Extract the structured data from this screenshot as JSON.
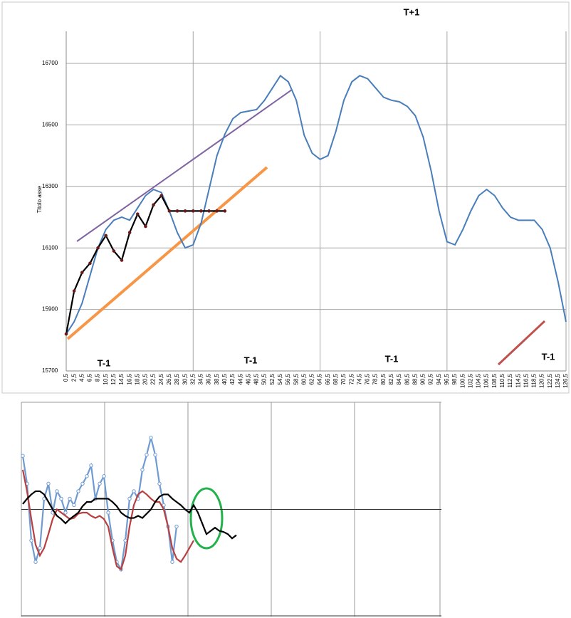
{
  "chart_data": [
    {
      "type": "line",
      "title": "T+1",
      "y_label": "Titolo asse",
      "annotations": [
        "T-1",
        "T-1",
        "T-1",
        "T-1"
      ],
      "categories": [
        "0,5",
        "2,5",
        "4,5",
        "6,5",
        "8,5",
        "10,5",
        "12,5",
        "14,5",
        "16,5",
        "18,5",
        "20,5",
        "22,5",
        "24,5",
        "26,5",
        "28,5",
        "30,5",
        "32,5",
        "34,5",
        "36,5",
        "38,5",
        "40,5",
        "42,5",
        "44,5",
        "46,5",
        "48,5",
        "50,5",
        "52,5",
        "54,5",
        "56,5",
        "58,5",
        "60,5",
        "62,5",
        "64,5",
        "66,5",
        "68,5",
        "70,5",
        "72,5",
        "74,5",
        "76,5",
        "78,5",
        "80,5",
        "82,5",
        "84,5",
        "86,5",
        "88,5",
        "90,5",
        "92,5",
        "94,5",
        "96,5",
        "98,5",
        "100,5",
        "102,5",
        "104,5",
        "106,5",
        "108,5",
        "110,5",
        "112,5",
        "114,5",
        "116,5",
        "118,5",
        "120,5",
        "122,5",
        "124,5",
        "126,5"
      ],
      "series": [
        {
          "color": "#4a7ebb",
          "values": [
            15820,
            15860,
            15920,
            16010,
            16100,
            16160,
            16190,
            16200,
            16190,
            16230,
            16270,
            16290,
            16280,
            16220,
            16150,
            16100,
            16110,
            16180,
            16290,
            16400,
            16470,
            16520,
            16540,
            16545,
            16550,
            16580,
            16620,
            16660,
            16640,
            16580,
            16466,
            16408,
            16388,
            16400,
            16480,
            16580,
            16640,
            16660,
            16650,
            16620,
            16590,
            16580,
            16575,
            16560,
            16530,
            16460,
            16350,
            16220,
            16120,
            16110,
            16160,
            16220,
            16270,
            16290,
            16270,
            16230,
            16200,
            16190,
            16190,
            16190,
            16160,
            16100,
            15990,
            15860
          ]
        },
        {
          "color": "#000000",
          "marker_color": "#6b1a1a",
          "values": [
            15820,
            15960,
            16020,
            16050,
            16100,
            16140,
            16090,
            16060,
            16150,
            16210,
            16170,
            16240,
            16270,
            16220,
            16220,
            16220,
            16220,
            16220,
            16220,
            16220,
            16220,
            null,
            null,
            null,
            null,
            null,
            null,
            null,
            null,
            null,
            null,
            null,
            null,
            null,
            null,
            null,
            null,
            null,
            null,
            null,
            null,
            null,
            null,
            null,
            null,
            null,
            null,
            null,
            null,
            null,
            null,
            null,
            null,
            null,
            null,
            null,
            null,
            null,
            null,
            null,
            null,
            null,
            null,
            null
          ]
        }
      ],
      "ylim": [
        15700,
        16700
      ],
      "yticks": [
        15700,
        15900,
        16100,
        16300,
        16500,
        16700
      ],
      "grid": true
    },
    {
      "type": "line",
      "ylim": [
        -1,
        1
      ],
      "series": [
        {
          "color": "#6f9bd1",
          "marker": "circle",
          "values": [
            0.5,
            0.24,
            -0.29,
            -0.49,
            -0.36,
            0.1,
            0.24,
            -0.03,
            0.17,
            0.1,
            -0.03,
            0.1,
            0.04,
            0.17,
            0.24,
            0.31,
            0.41,
            0.1,
            0.24,
            0.31,
            -0.03,
            -0.29,
            -0.49,
            -0.56,
            -0.29,
            0.1,
            0.17,
            0.1,
            0.37,
            0.51,
            0.67,
            0.51,
            0.24,
            0.04,
            -0.16,
            -0.49,
            -0.16
          ]
        },
        {
          "color": "#b84040",
          "values": [
            0.37,
            0.17,
            -0.09,
            -0.33,
            -0.43,
            -0.36,
            -0.23,
            -0.09,
            0,
            -0.03,
            -0.06,
            -0.09,
            -0.08,
            -0.04,
            -0.03,
            -0.03,
            -0.06,
            -0.08,
            -0.06,
            -0.09,
            -0.16,
            -0.36,
            -0.53,
            -0.56,
            -0.43,
            -0.16,
            0.04,
            0.14,
            0.17,
            0.14,
            0.1,
            0.07,
            0.07,
            0,
            -0.16,
            -0.36,
            -0.46,
            -0.49,
            -0.43,
            -0.36,
            -0.29
          ]
        },
        {
          "color": "#000000",
          "values": [
            0.05,
            0.1,
            0.14,
            0.17,
            0.17,
            0.14,
            0.07,
            0,
            -0.06,
            -0.09,
            -0.13,
            -0.09,
            -0.06,
            -0.03,
            0.03,
            0.07,
            0.07,
            0.1,
            0.1,
            0.1,
            0.1,
            0.07,
            0.03,
            -0.03,
            -0.06,
            -0.08,
            -0.08,
            -0.06,
            -0.08,
            -0.04,
            0,
            0.07,
            0.12,
            0.14,
            0.14,
            0.1,
            0.07,
            0.04,
            0,
            -0.03,
            0.04,
            -0.03,
            -0.13,
            -0.23,
            -0.2,
            -0.17,
            -0.2,
            -0.21,
            -0.23,
            -0.27,
            -0.24
          ]
        }
      ]
    }
  ]
}
